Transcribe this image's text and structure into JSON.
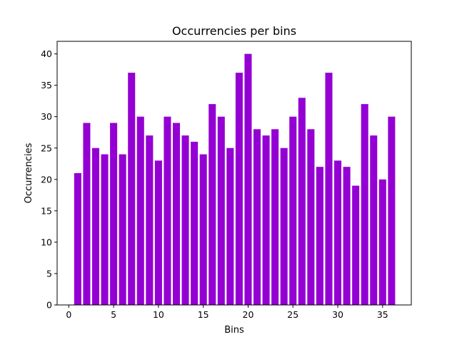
{
  "chart_data": {
    "type": "bar",
    "title": "Occurrencies per bins",
    "xlabel": "Bins",
    "ylabel": "Occurrencies",
    "xlim": [
      -1.3,
      38.2
    ],
    "ylim": [
      0,
      42
    ],
    "xticks": [
      0,
      5,
      10,
      15,
      20,
      25,
      30,
      35
    ],
    "yticks": [
      0,
      5,
      10,
      15,
      20,
      25,
      30,
      35,
      40
    ],
    "bar_color": "#9400D3",
    "grid": false,
    "legend": null,
    "x": [
      1,
      2,
      3,
      4,
      5,
      6,
      7,
      8,
      9,
      10,
      11,
      12,
      13,
      14,
      15,
      16,
      17,
      18,
      19,
      20,
      21,
      22,
      23,
      24,
      25,
      26,
      27,
      28,
      29,
      30,
      31,
      32,
      33,
      34,
      35,
      36
    ],
    "values": [
      21,
      29,
      25,
      24,
      29,
      24,
      37,
      30,
      27,
      23,
      30,
      29,
      27,
      26,
      24,
      32,
      30,
      25,
      37,
      40,
      28,
      27,
      28,
      25,
      30,
      33,
      28,
      22,
      37,
      23,
      22,
      19,
      32,
      27,
      20,
      30
    ]
  }
}
